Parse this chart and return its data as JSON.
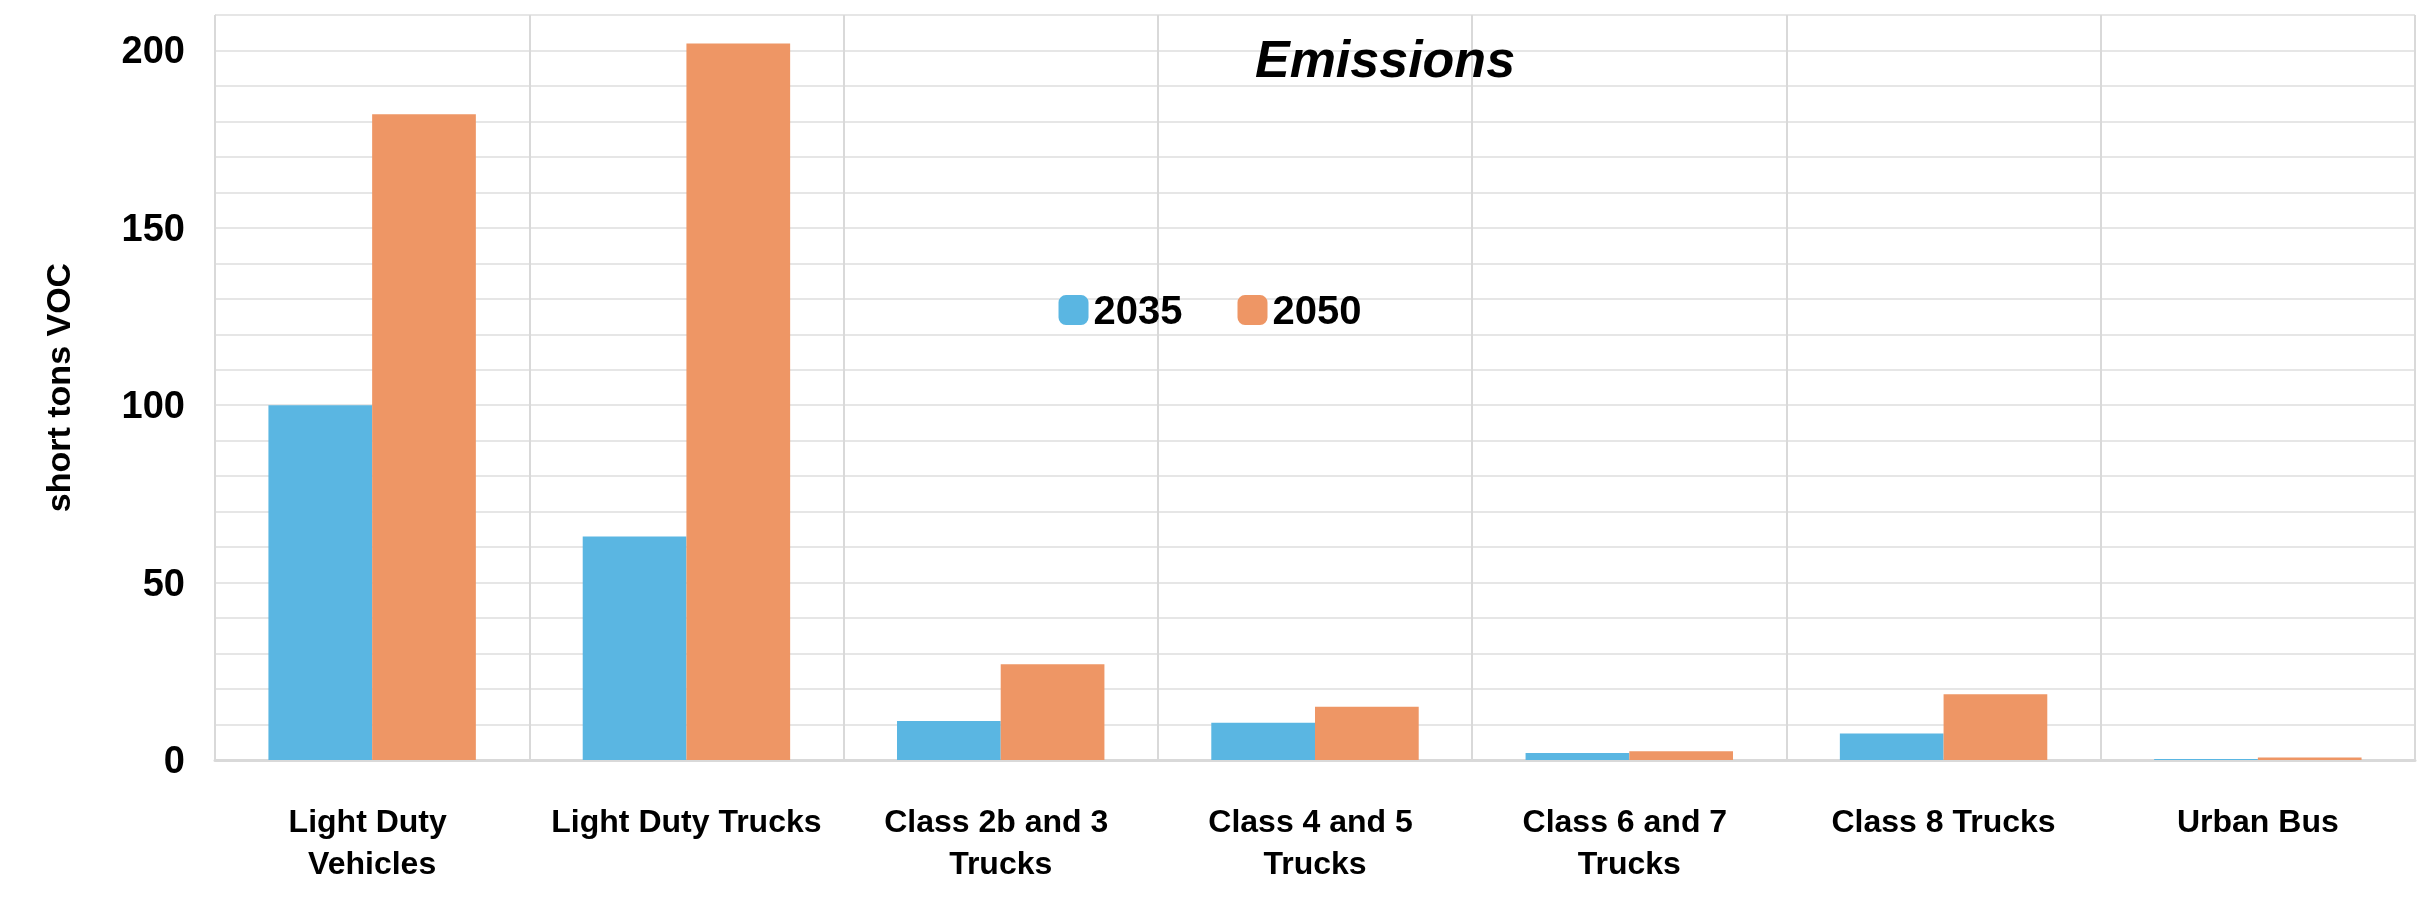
{
  "chart_data": {
    "type": "bar",
    "title": "Emissions",
    "ylabel": "short tons VOC",
    "categories": [
      "Light Duty Vehicles",
      "Light Duty Trucks",
      "Class 2b and 3 Trucks",
      "Class 4 and 5 Trucks",
      "Class 6 and 7 Trucks",
      "Class 8 Trucks",
      "Urban Bus"
    ],
    "series": [
      {
        "name": "2035",
        "color": "#5ab6e2",
        "values": [
          100,
          63,
          11,
          10.5,
          2,
          7.5,
          0.3
        ]
      },
      {
        "name": "2050",
        "color": "#ee9665",
        "values": [
          182,
          202,
          27,
          15,
          2.5,
          18.5,
          0.7
        ]
      }
    ],
    "ylim": [
      0,
      210
    ],
    "yticks": [
      0,
      {
        "value": 10,
        "label": null
      },
      {
        "value": 20,
        "label": null
      },
      {
        "value": 30,
        "label": null
      },
      {
        "value": 40,
        "label": null
      },
      50,
      {
        "value": 60,
        "label": null
      },
      {
        "value": 70,
        "label": null
      },
      {
        "value": 80,
        "label": null
      },
      {
        "value": 90,
        "label": null
      },
      100,
      {
        "value": 110,
        "label": null
      },
      {
        "value": 120,
        "label": null
      },
      {
        "value": 130,
        "label": null
      },
      {
        "value": 140,
        "label": null
      },
      150,
      {
        "value": 160,
        "label": null
      },
      {
        "value": 170,
        "label": null
      },
      {
        "value": 180,
        "label": null
      },
      {
        "value": 190,
        "label": null
      },
      200,
      {
        "value": 210,
        "label": null
      }
    ],
    "grid": true,
    "legend": "top"
  }
}
